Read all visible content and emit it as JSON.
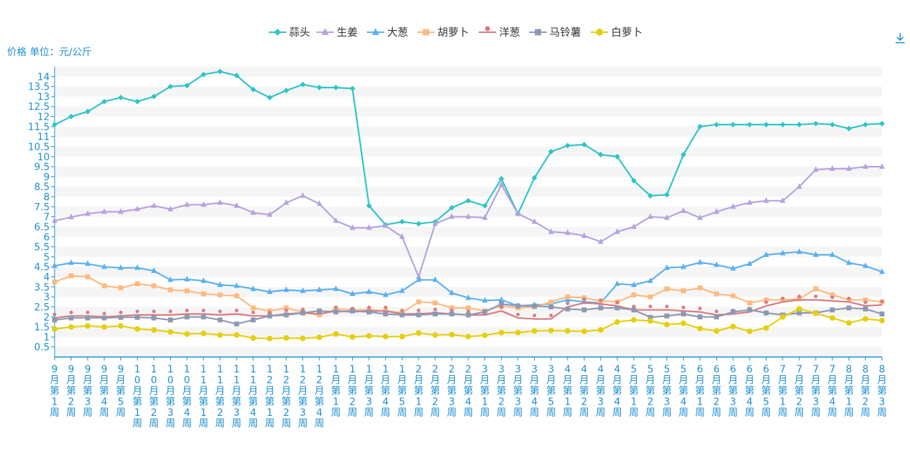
{
  "toolbar": {
    "download_icon": "download-icon"
  },
  "chart_data": {
    "type": "line",
    "ylabel": "价格 单位：元/公斤",
    "ylim": [
      0,
      14.5
    ],
    "grid": true,
    "legend_position": "top-center",
    "yticks": [
      "0.5",
      "1",
      "1.5",
      "2",
      "2.5",
      "3",
      "3.5",
      "4",
      "4.5",
      "5",
      "5.5",
      "6",
      "6.5",
      "7",
      "7.5",
      "8",
      "8.5",
      "9",
      "9.5",
      "10",
      "10.5",
      "11",
      "11.5",
      "12",
      "12.5",
      "13",
      "13.5",
      "14"
    ],
    "categories": [
      "9月第1周",
      "9月第2周",
      "9月第3周",
      "9月第4周",
      "9月第5周",
      "10月第1周",
      "10月第2周",
      "10月第3周",
      "10月第4周",
      "11月第1周",
      "11月第2周",
      "11月第3周",
      "11月第4周",
      "12月第1周",
      "12月第2周",
      "12月第3周",
      "12月第4周",
      "1月第1周",
      "1月第2周",
      "1月第3周",
      "1月第4周",
      "1月第5周",
      "2月第1周",
      "2月第2周",
      "2月第3周",
      "2月第4周",
      "3月第1周",
      "3月第2周",
      "3月第3周",
      "3月第4周",
      "3月第5周",
      "4月第1周",
      "4月第2周",
      "4月第3周",
      "4月第4周",
      "5月第1周",
      "5月第2周",
      "5月第3周",
      "5月第4周",
      "6月第1周",
      "6月第2周",
      "6月第3周",
      "6月第4周",
      "6月第5周",
      "7月第1周",
      "7月第2周",
      "7月第3周",
      "7月第4周",
      "8月第1周",
      "8月第2周",
      "8月第3周"
    ],
    "series": [
      {
        "name": "蒜头",
        "color": "#2ec4c6",
        "marker": "diamond",
        "values": [
          11.6,
          12.0,
          12.25,
          12.75,
          12.95,
          12.75,
          13.0,
          13.5,
          13.55,
          14.1,
          14.25,
          14.05,
          13.35,
          12.95,
          13.3,
          13.6,
          13.45,
          13.45,
          13.4,
          7.55,
          6.6,
          6.75,
          6.65,
          6.75,
          7.45,
          7.8,
          7.55,
          8.9,
          7.15,
          8.95,
          10.25,
          10.55,
          10.6,
          10.1,
          10.0,
          8.8,
          8.05,
          8.1,
          10.1,
          11.5,
          11.6,
          11.6,
          11.6,
          11.6,
          11.6,
          11.6,
          11.65,
          11.6,
          11.4,
          11.6,
          11.65
        ]
      },
      {
        "name": "生姜",
        "color": "#b6a2de",
        "marker": "triangle",
        "values": [
          6.8,
          6.98,
          7.15,
          7.25,
          7.25,
          7.38,
          7.55,
          7.38,
          7.6,
          7.6,
          7.7,
          7.55,
          7.2,
          7.1,
          7.7,
          8.05,
          7.65,
          6.8,
          6.45,
          6.45,
          6.55,
          6.0,
          4.0,
          6.65,
          7.0,
          7.0,
          6.95,
          8.6,
          7.15,
          6.75,
          6.25,
          6.2,
          6.05,
          5.75,
          6.25,
          6.5,
          7.0,
          6.95,
          7.3,
          6.95,
          7.25,
          7.5,
          7.7,
          7.8,
          7.8,
          8.5,
          9.35,
          9.4,
          9.4,
          9.5,
          9.5
        ]
      },
      {
        "name": "大葱",
        "color": "#5ab1ef",
        "marker": "triangle",
        "values": [
          4.55,
          4.7,
          4.65,
          4.5,
          4.45,
          4.45,
          4.3,
          3.85,
          3.88,
          3.8,
          3.6,
          3.55,
          3.4,
          3.25,
          3.35,
          3.3,
          3.35,
          3.4,
          3.15,
          3.25,
          3.1,
          3.3,
          3.85,
          3.85,
          3.2,
          2.95,
          2.82,
          2.85,
          2.55,
          2.6,
          2.65,
          2.85,
          2.75,
          2.7,
          3.65,
          3.6,
          3.8,
          4.45,
          4.5,
          4.72,
          4.6,
          4.42,
          4.65,
          5.1,
          5.18,
          5.25,
          5.1,
          5.1,
          4.7,
          4.55,
          4.25
        ]
      },
      {
        "name": "胡萝卜",
        "color": "#ffb980",
        "marker": "square",
        "values": [
          3.75,
          4.05,
          4.0,
          3.55,
          3.45,
          3.65,
          3.55,
          3.35,
          3.3,
          3.15,
          3.1,
          3.05,
          2.45,
          2.3,
          2.45,
          2.25,
          2.1,
          2.4,
          2.35,
          2.35,
          2.3,
          2.2,
          2.75,
          2.7,
          2.45,
          2.45,
          2.3,
          2.55,
          2.45,
          2.5,
          2.75,
          3.0,
          2.95,
          2.8,
          2.75,
          3.1,
          3.0,
          3.4,
          3.3,
          3.45,
          3.15,
          3.05,
          2.7,
          2.85,
          2.85,
          2.9,
          3.4,
          3.1,
          2.85,
          2.85,
          2.75
        ]
      },
      {
        "name": "洋葱",
        "color": "#d87a80",
        "marker": "pin",
        "values": [
          1.95,
          2.05,
          2.05,
          2.0,
          2.05,
          2.1,
          2.1,
          2.1,
          2.15,
          2.15,
          2.1,
          2.15,
          2.05,
          2.05,
          2.15,
          2.2,
          2.15,
          2.3,
          2.25,
          2.3,
          2.3,
          2.15,
          2.15,
          2.2,
          2.15,
          2.1,
          2.1,
          2.3,
          1.95,
          1.9,
          1.9,
          2.5,
          2.7,
          2.65,
          2.55,
          2.35,
          2.35,
          2.35,
          2.3,
          2.25,
          2.1,
          2.15,
          2.25,
          2.55,
          2.75,
          2.85,
          2.85,
          2.8,
          2.75,
          2.55,
          2.6
        ]
      },
      {
        "name": "马铃薯",
        "color": "#8d98b3",
        "marker": "square",
        "values": [
          1.85,
          1.95,
          1.95,
          1.95,
          1.98,
          1.98,
          1.95,
          1.85,
          2.0,
          2.0,
          1.85,
          1.65,
          1.85,
          2.05,
          2.1,
          2.2,
          2.3,
          2.25,
          2.3,
          2.25,
          2.15,
          2.1,
          2.1,
          2.15,
          2.15,
          2.1,
          2.25,
          2.65,
          2.55,
          2.55,
          2.5,
          2.4,
          2.35,
          2.45,
          2.45,
          2.35,
          1.98,
          2.05,
          2.15,
          2.0,
          2.0,
          2.25,
          2.35,
          2.2,
          2.1,
          2.2,
          2.2,
          2.35,
          2.45,
          2.4,
          2.15
        ]
      },
      {
        "name": "白萝卜",
        "color": "#e5cf0d",
        "marker": "circle",
        "values": [
          1.4,
          1.5,
          1.55,
          1.5,
          1.55,
          1.4,
          1.35,
          1.25,
          1.15,
          1.18,
          1.1,
          1.1,
          0.95,
          0.92,
          0.95,
          0.93,
          0.98,
          1.15,
          1.0,
          1.05,
          1.02,
          1.02,
          1.2,
          1.1,
          1.12,
          1.02,
          1.08,
          1.22,
          1.22,
          1.3,
          1.32,
          1.3,
          1.28,
          1.35,
          1.75,
          1.85,
          1.8,
          1.62,
          1.68,
          1.42,
          1.3,
          1.52,
          1.28,
          1.45,
          2.0,
          2.4,
          2.18,
          1.95,
          1.7,
          1.9,
          1.82
        ]
      }
    ]
  }
}
